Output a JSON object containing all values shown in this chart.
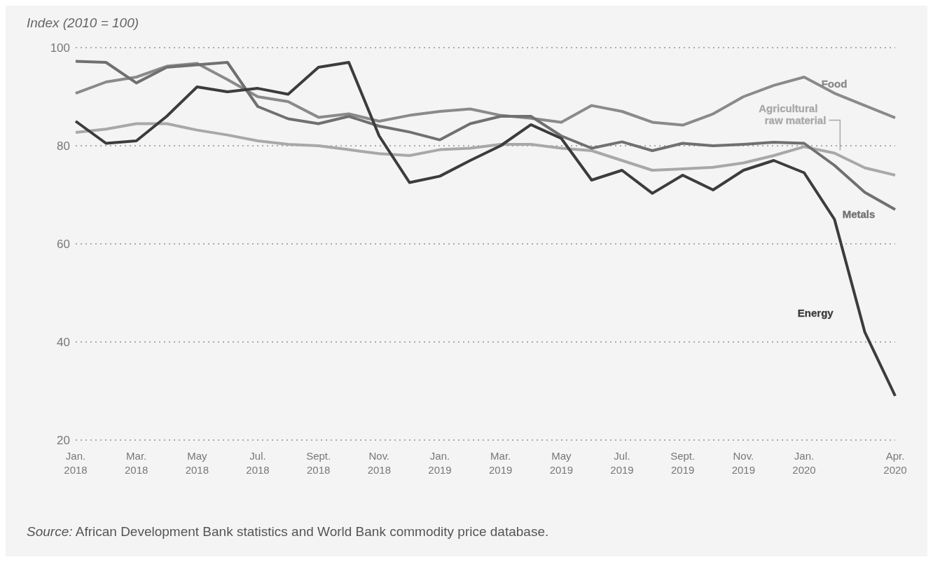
{
  "chart_data": {
    "type": "line",
    "ylabel": "Index (2010 = 100)",
    "categories": [
      "Jan. 2018",
      null,
      "Mar. 2018",
      null,
      "May 2018",
      null,
      "Jul. 2018",
      null,
      "Sept. 2018",
      null,
      "Nov. 2018",
      null,
      "Jan. 2019",
      null,
      "Mar. 2019",
      null,
      "May 2019",
      null,
      "Jul. 2019",
      null,
      "Sept. 2019",
      null,
      "Nov. 2019",
      null,
      "Jan. 2020",
      null,
      null,
      "Apr. 2020"
    ],
    "series": [
      {
        "name": "Food",
        "color": "#8a8a8a",
        "values": [
          90.7,
          93,
          94,
          96.2,
          96.8,
          93.5,
          90,
          89,
          85.8,
          86.5,
          85,
          86.2,
          87,
          87.5,
          86.2,
          85.6,
          84.8,
          88.2,
          87,
          84.8,
          84.2,
          86.5,
          90,
          92.3,
          94,
          90.7,
          88.2,
          85.7
        ]
      },
      {
        "name": "Agricultural raw material",
        "color": "#a8a8a8",
        "values": [
          82.7,
          83.4,
          84.5,
          84.5,
          83.2,
          82.2,
          81,
          80.3,
          80,
          79.2,
          78.4,
          78,
          79.2,
          79.5,
          80.3,
          80.3,
          79.5,
          79,
          77,
          75,
          75.3,
          75.6,
          76.5,
          78,
          79.8,
          78.5,
          75.5,
          74
        ]
      },
      {
        "name": "Metals",
        "color": "#707070",
        "values": [
          97.2,
          97,
          92.8,
          96,
          96.5,
          97,
          88,
          85.5,
          84.5,
          86,
          84,
          82.8,
          81.2,
          84.5,
          86,
          86,
          82,
          79.5,
          80.8,
          79,
          80.5,
          80,
          80.3,
          80.7,
          80.5,
          76,
          70.5,
          67
        ]
      },
      {
        "name": "Energy",
        "color": "#3c3c3c",
        "values": [
          85,
          80.5,
          81,
          86,
          92,
          91,
          91.7,
          90.5,
          96,
          97,
          82,
          72.5,
          73.8,
          77,
          80,
          84.3,
          81.5,
          73,
          75,
          70.3,
          74,
          71,
          75,
          77,
          74.5,
          65,
          42,
          29
        ]
      }
    ],
    "ylim": [
      20,
      100
    ],
    "yticks": [
      20,
      40,
      60,
      80,
      100
    ],
    "grid": "y",
    "legend": false,
    "marker": "none",
    "line_style": "solid",
    "annotations": [
      "Source: African Development Bank statistics and World Bank commodity price database."
    ]
  }
}
